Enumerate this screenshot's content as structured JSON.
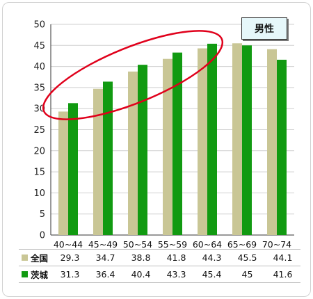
{
  "chart_data": {
    "type": "bar",
    "categories": [
      "40~44",
      "45~49",
      "50~54",
      "55~59",
      "60~64",
      "65~69",
      "70~74"
    ],
    "series": [
      {
        "name": "全国",
        "color": "#c9c695",
        "values": [
          29.3,
          34.7,
          38.8,
          41.8,
          44.3,
          45.5,
          44.1
        ]
      },
      {
        "name": "茨城",
        "color": "#119a11",
        "values": [
          31.3,
          36.4,
          40.4,
          43.3,
          45.4,
          45,
          41.6
        ]
      }
    ],
    "ylim": [
      0,
      50
    ],
    "yticks": [
      0,
      5,
      10,
      15,
      20,
      25,
      30,
      35,
      40,
      45,
      50
    ],
    "grid": true,
    "legend_title": "男性",
    "highlight": "red ellipse around 40~44 through 60~64",
    "table_rows": [
      {
        "label": "全国",
        "values": [
          "29.3",
          "34.7",
          "38.8",
          "41.8",
          "44.3",
          "45.5",
          "44.1"
        ]
      },
      {
        "label": "茨城",
        "values": [
          "31.3",
          "36.4",
          "40.4",
          "43.3",
          "45.4",
          "45",
          "41.6"
        ]
      }
    ]
  }
}
